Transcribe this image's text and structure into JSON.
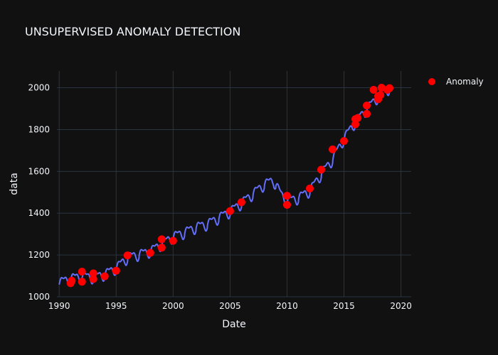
{
  "chart_data": {
    "type": "line",
    "title": "UNSUPERVISED ANOMALY DETECTION",
    "xlabel": "Date",
    "ylabel": "data",
    "xlim": [
      1989.8,
      2020.9
    ],
    "ylim": [
      1000,
      2080
    ],
    "x_ticks": [
      1990,
      1995,
      2000,
      2005,
      2010,
      2015,
      2020
    ],
    "x_tick_labels": [
      "1990",
      "1995",
      "2000",
      "2005",
      "2010",
      "2015",
      "2020"
    ],
    "y_ticks": [
      1000,
      1200,
      1400,
      1600,
      1800,
      2000
    ],
    "y_tick_labels": [
      "1000",
      "1200",
      "1400",
      "1600",
      "1800",
      "2000"
    ],
    "grid": true,
    "legend_position": "top-right",
    "colors": {
      "background": "#111111",
      "grid": "#283442",
      "line": "#636efa",
      "anomaly": "#ff0000",
      "text": "#f2f5fa"
    },
    "series": [
      {
        "kind": "line",
        "trend_points": [
          [
            1990.0,
            1070
          ],
          [
            1991.0,
            1090
          ],
          [
            1992.0,
            1100
          ],
          [
            1993.0,
            1095
          ],
          [
            1994.0,
            1110
          ],
          [
            1995.0,
            1140
          ],
          [
            1996.0,
            1190
          ],
          [
            1997.0,
            1205
          ],
          [
            1998.0,
            1220
          ],
          [
            1999.0,
            1255
          ],
          [
            2000.0,
            1290
          ],
          [
            2001.0,
            1310
          ],
          [
            2002.0,
            1335
          ],
          [
            2003.0,
            1350
          ],
          [
            2004.0,
            1380
          ],
          [
            2005.0,
            1410
          ],
          [
            2006.0,
            1450
          ],
          [
            2007.0,
            1495
          ],
          [
            2008.0,
            1540
          ],
          [
            2008.8,
            1560
          ],
          [
            2009.5,
            1490
          ],
          [
            2010.0,
            1460
          ],
          [
            2011.0,
            1475
          ],
          [
            2012.0,
            1510
          ],
          [
            2013.0,
            1590
          ],
          [
            2014.0,
            1660
          ],
          [
            2015.0,
            1760
          ],
          [
            2016.0,
            1840
          ],
          [
            2017.0,
            1900
          ],
          [
            2018.0,
            1960
          ],
          [
            2018.5,
            1985
          ],
          [
            2019.0,
            2000
          ]
        ],
        "seasonal_amplitude": 40
      },
      {
        "name": "Anomaly",
        "kind": "scatter",
        "points": [
          [
            1991.0,
            1065
          ],
          [
            1991.1,
            1077
          ],
          [
            1992.0,
            1072
          ],
          [
            1992.0,
            1120
          ],
          [
            1993.0,
            1085
          ],
          [
            1993.0,
            1112
          ],
          [
            1994.0,
            1098
          ],
          [
            1995.0,
            1125
          ],
          [
            1996.0,
            1198
          ],
          [
            1998.0,
            1210
          ],
          [
            1999.0,
            1235
          ],
          [
            1999.0,
            1275
          ],
          [
            2000.0,
            1268
          ],
          [
            2005.0,
            1410
          ],
          [
            2006.0,
            1452
          ],
          [
            2010.0,
            1440
          ],
          [
            2010.0,
            1483
          ],
          [
            2012.0,
            1518
          ],
          [
            2013.0,
            1608
          ],
          [
            2014.0,
            1705
          ],
          [
            2015.0,
            1745
          ],
          [
            2016.0,
            1825
          ],
          [
            2016.0,
            1850
          ],
          [
            2016.2,
            1855
          ],
          [
            2017.0,
            1875
          ],
          [
            2017.0,
            1915
          ],
          [
            2017.6,
            1990
          ],
          [
            2018.0,
            1945
          ],
          [
            2018.0,
            1960
          ],
          [
            2018.2,
            1965
          ],
          [
            2018.3,
            2000
          ],
          [
            2018.8,
            1990
          ],
          [
            2019.0,
            1998
          ]
        ]
      }
    ]
  }
}
